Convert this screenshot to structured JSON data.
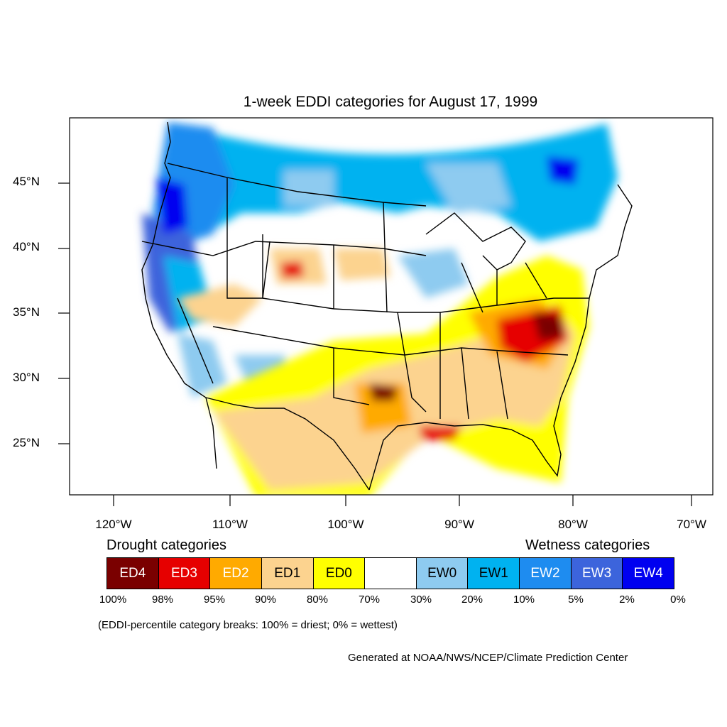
{
  "title": "1-week EDDI categories for August 17, 1999",
  "lat_labels": [
    "45°N",
    "40°N",
    "35°N",
    "30°N",
    "25°N"
  ],
  "lon_labels": [
    "120°W",
    "110°W",
    "100°W",
    "90°W",
    "80°W",
    "70°W"
  ],
  "drought_heading": "Drought categories",
  "wetness_heading": "Wetness categories",
  "legend": [
    {
      "label": "ED4",
      "color": "#7a0000",
      "text_color": "#ffffff"
    },
    {
      "label": "ED3",
      "color": "#e60000",
      "text_color": "#ffffff"
    },
    {
      "label": "ED2",
      "color": "#ffaa00",
      "text_color": "#ffffff"
    },
    {
      "label": "ED1",
      "color": "#fcd38f",
      "text_color": "#000000"
    },
    {
      "label": "ED0",
      "color": "#ffff00",
      "text_color": "#000000"
    },
    {
      "label": "",
      "color": "#ffffff",
      "text_color": "#000000"
    },
    {
      "label": "EW0",
      "color": "#8ecbf0",
      "text_color": "#000000"
    },
    {
      "label": "EW1",
      "color": "#00b2f0",
      "text_color": "#000000"
    },
    {
      "label": "EW2",
      "color": "#1e8cf0",
      "text_color": "#ffffff"
    },
    {
      "label": "EW3",
      "color": "#3c64dc",
      "text_color": "#ffffff"
    },
    {
      "label": "EW4",
      "color": "#0000f0",
      "text_color": "#ffffff"
    }
  ],
  "breaks": [
    "100%",
    "98%",
    "95%",
    "90%",
    "80%",
    "70%",
    "30%",
    "20%",
    "10%",
    "5%",
    "2%",
    "0%"
  ],
  "note": "(EDDI-percentile category breaks: 100% = driest; 0% = wettest)",
  "credit": "Generated at NOAA/NWS/NCEP/Climate Prediction Center"
}
